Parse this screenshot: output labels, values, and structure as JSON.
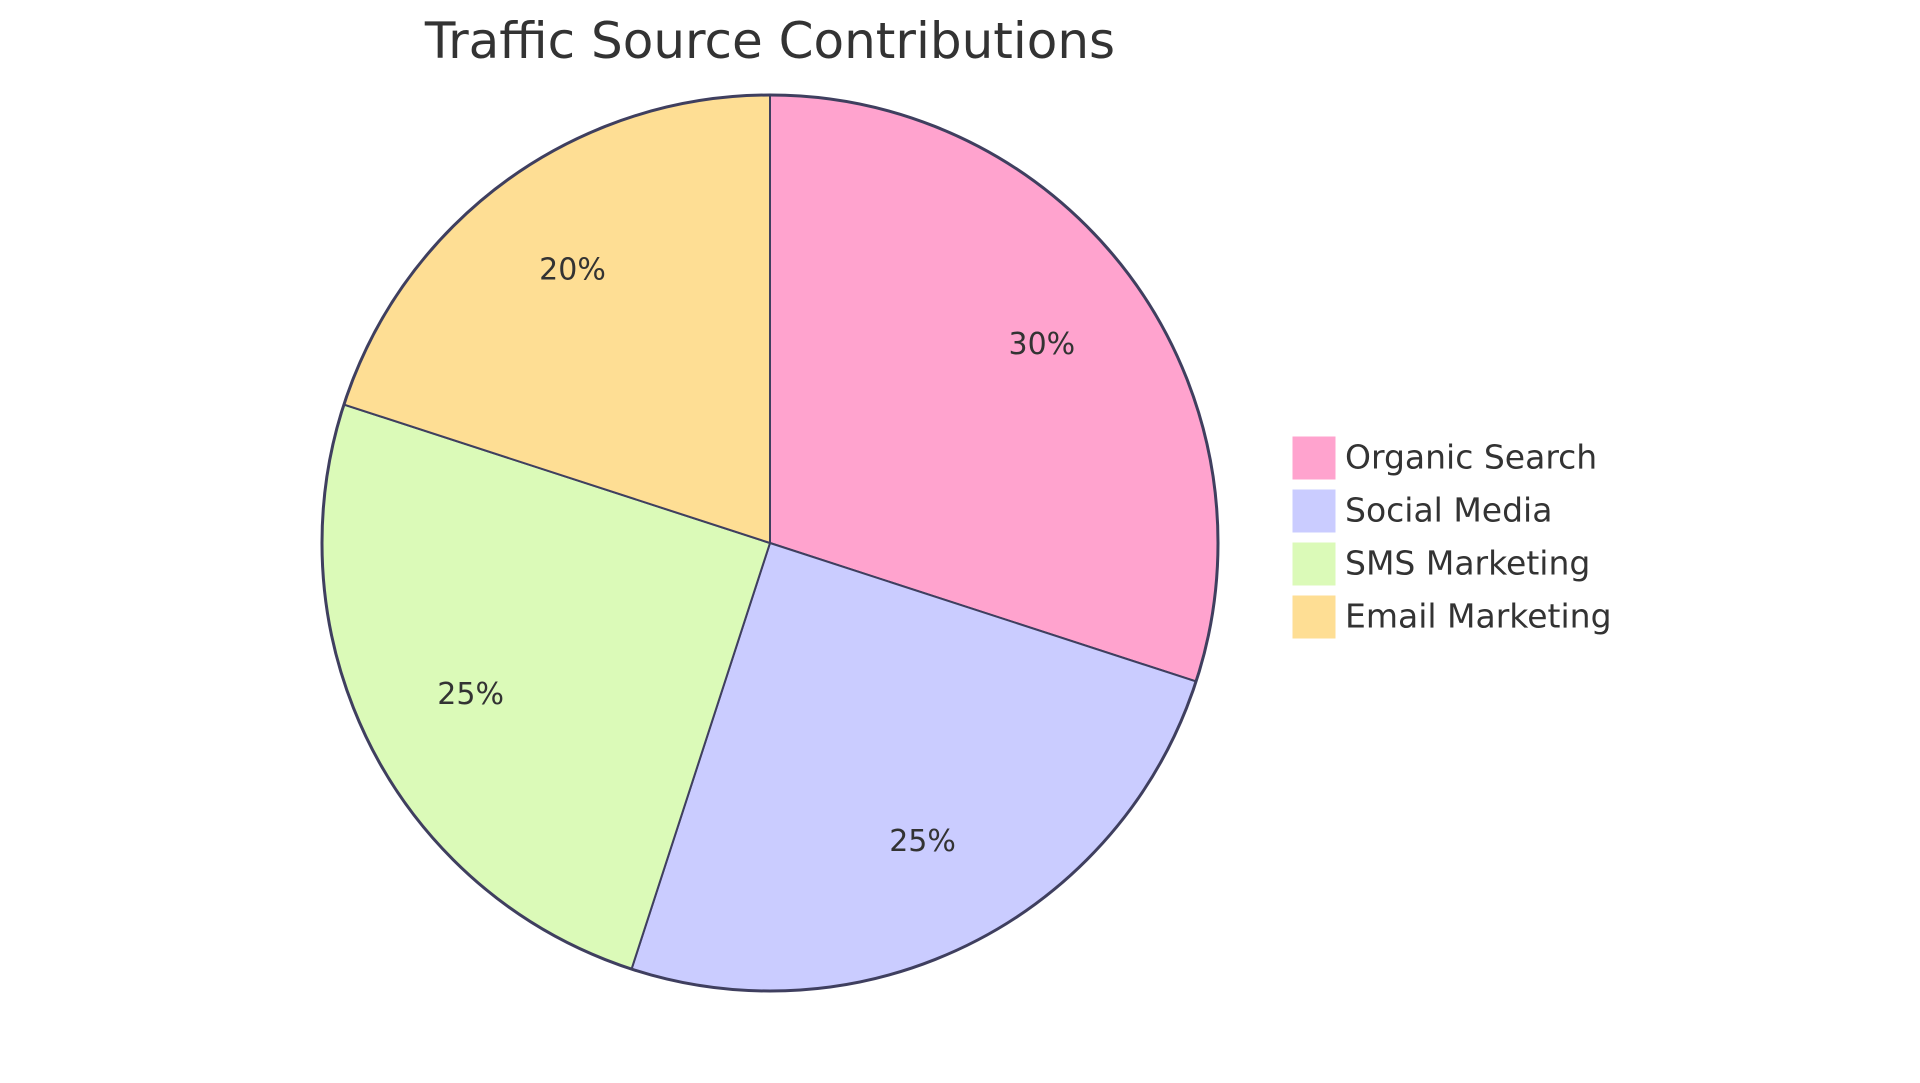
{
  "chart_data": {
    "type": "pie",
    "title": "Traffic Source Contributions",
    "legend_position": "right",
    "slices": [
      {
        "label": "Organic Search",
        "value": 30,
        "display": "30%",
        "color": "#FFA3CE"
      },
      {
        "label": "Social Media",
        "value": 25,
        "display": "25%",
        "color": "#CACCFF"
      },
      {
        "label": "SMS Marketing",
        "value": 25,
        "display": "25%",
        "color": "#DBFAB8"
      },
      {
        "label": "Email Marketing",
        "value": 20,
        "display": "20%",
        "color": "#FEDE94"
      }
    ],
    "stroke_color": "#3F3F5F"
  }
}
